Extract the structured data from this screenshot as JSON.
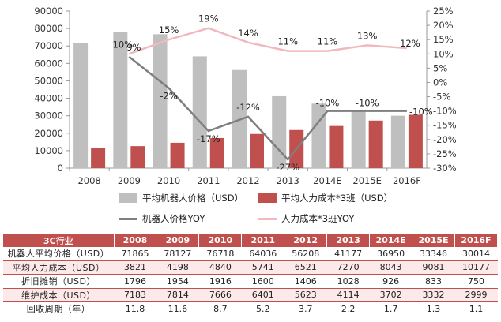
{
  "chart_data": {
    "type": "bar+line",
    "categories": [
      "2008",
      "2009",
      "2010",
      "2011",
      "2012",
      "2013",
      "2014E",
      "2015E",
      "2016F"
    ],
    "y_left": {
      "ylim": [
        0,
        90000
      ],
      "ticks": [
        0,
        10000,
        20000,
        30000,
        40000,
        50000,
        60000,
        70000,
        80000,
        90000
      ]
    },
    "y_right": {
      "ylim": [
        -30,
        25
      ],
      "ticks": [
        25,
        20,
        15,
        10,
        5,
        0,
        -5,
        -10,
        -15,
        -20,
        -25,
        -30
      ],
      "unit": "%"
    },
    "bar_series": [
      {
        "name": "平均机器人价格（USD）",
        "color": "#bfbfbf",
        "values": [
          71865,
          78127,
          76718,
          64036,
          56208,
          41177,
          36950,
          33346,
          30014
        ]
      },
      {
        "name": "平均人力成本*3班（USD）",
        "color": "#c0504d",
        "values": [
          11463,
          12594,
          14520,
          17223,
          19563,
          21810,
          24129,
          27243,
          30531
        ]
      }
    ],
    "line_series": [
      {
        "name": "机器人价格YOY",
        "color": "#7f7f7f",
        "values": [
          null,
          9,
          -2,
          -17,
          -12,
          -27,
          -10,
          -10,
          -10
        ],
        "labels": [
          "",
          "9%",
          "-2%",
          "-17%",
          "-12%",
          "-27%",
          "-10%",
          "-10%",
          "-10%"
        ]
      },
      {
        "name": "人力成本*3班YOY",
        "color": "#f2b8bf",
        "values": [
          null,
          10,
          15,
          19,
          14,
          11,
          11,
          13,
          12
        ],
        "labels": [
          "",
          "10%",
          "15%",
          "19%",
          "14%",
          "11%",
          "11%",
          "13%",
          "12%"
        ]
      }
    ],
    "grid": false,
    "legend": "bottom"
  },
  "table": {
    "headers": [
      "3C行业",
      "2008",
      "2009",
      "2010",
      "2011",
      "2012",
      "2013",
      "2014E",
      "2015E",
      "2016F"
    ],
    "rows": [
      [
        "机器人平均价格（USD）",
        "71865",
        "78127",
        "76718",
        "64036",
        "56208",
        "41177",
        "36950",
        "33346",
        "30014"
      ],
      [
        "平均人力成本（USD）",
        "3821",
        "4198",
        "4840",
        "5741",
        "6521",
        "7270",
        "8043",
        "9081",
        "10177"
      ],
      [
        "折旧摊销（USD）",
        "1796",
        "1954",
        "1916",
        "1600",
        "1406",
        "1028",
        "926",
        "833",
        "750"
      ],
      [
        "维护成本（USD）",
        "7183",
        "7814",
        "7666",
        "6401",
        "5623",
        "4114",
        "3702",
        "3332",
        "2999"
      ],
      [
        "回收周期（年）",
        "11.8",
        "11.6",
        "8.7",
        "5.2",
        "3.7",
        "2.2",
        "1.7",
        "1.3",
        "1.1"
      ]
    ]
  }
}
